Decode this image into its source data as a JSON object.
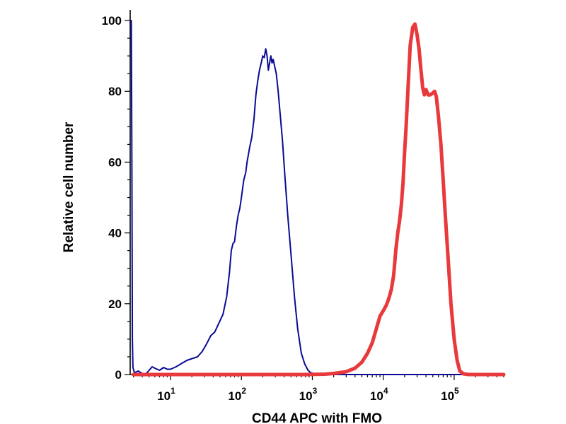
{
  "chart_data": {
    "type": "line",
    "title": "",
    "xlabel": "CD44 APC with FMO",
    "ylabel": "Relative cell number",
    "x_scale": "log",
    "xlim": [
      2.7,
      500000
    ],
    "ylim": [
      0,
      103
    ],
    "x_ticks": [
      {
        "value": 10,
        "base": "10",
        "exp": "1"
      },
      {
        "value": 100,
        "base": "10",
        "exp": "2"
      },
      {
        "value": 1000,
        "base": "10",
        "exp": "3"
      },
      {
        "value": 10000,
        "base": "10",
        "exp": "4"
      },
      {
        "value": 100000,
        "base": "10",
        "exp": "5"
      }
    ],
    "y_ticks": [
      {
        "value": 0,
        "label": "0"
      },
      {
        "value": 20,
        "label": "20"
      },
      {
        "value": 40,
        "label": "40"
      },
      {
        "value": 60,
        "label": "60"
      },
      {
        "value": 80,
        "label": "80"
      },
      {
        "value": 100,
        "label": "100"
      }
    ],
    "grid": false,
    "legend": "none",
    "series": [
      {
        "color": "#0a0a96",
        "line_width": "thin",
        "points": [
          [
            2.8,
            100
          ],
          [
            2.85,
            60
          ],
          [
            2.9,
            10
          ],
          [
            2.95,
            2
          ],
          [
            3.1,
            0.5
          ],
          [
            3.5,
            1
          ],
          [
            4,
            0.3
          ],
          [
            4.5,
            0.2
          ],
          [
            5,
            1.2
          ],
          [
            5.5,
            2.2
          ],
          [
            6,
            1.8
          ],
          [
            7,
            1.2
          ],
          [
            8,
            2
          ],
          [
            9,
            1.5
          ],
          [
            10,
            1.5
          ],
          [
            12,
            2.2
          ],
          [
            14,
            3
          ],
          [
            17,
            4
          ],
          [
            20,
            4.5
          ],
          [
            24,
            5
          ],
          [
            28,
            6.5
          ],
          [
            32,
            8.5
          ],
          [
            37,
            11
          ],
          [
            42,
            12
          ],
          [
            48,
            14.5
          ],
          [
            55,
            17
          ],
          [
            62,
            22
          ],
          [
            68,
            29
          ],
          [
            72,
            35
          ],
          [
            76,
            37
          ],
          [
            80,
            37.5
          ],
          [
            85,
            42
          ],
          [
            90,
            45
          ],
          [
            95,
            47
          ],
          [
            100,
            50
          ],
          [
            108,
            55
          ],
          [
            115,
            57
          ],
          [
            120,
            60
          ],
          [
            130,
            64
          ],
          [
            140,
            67
          ],
          [
            150,
            72
          ],
          [
            160,
            79
          ],
          [
            170,
            83
          ],
          [
            180,
            86
          ],
          [
            190,
            88
          ],
          [
            200,
            90
          ],
          [
            210,
            89.5
          ],
          [
            220,
            92
          ],
          [
            230,
            90
          ],
          [
            240,
            86
          ],
          [
            250,
            88
          ],
          [
            260,
            90
          ],
          [
            270,
            88
          ],
          [
            280,
            89
          ],
          [
            295,
            87
          ],
          [
            310,
            85
          ],
          [
            330,
            80
          ],
          [
            350,
            74
          ],
          [
            380,
            66
          ],
          [
            410,
            56
          ],
          [
            450,
            45
          ],
          [
            500,
            34
          ],
          [
            560,
            22
          ],
          [
            620,
            13
          ],
          [
            700,
            6
          ],
          [
            780,
            3
          ],
          [
            870,
            1.2
          ],
          [
            950,
            0.5
          ],
          [
            1100,
            0.2
          ],
          [
            1500,
            0
          ],
          [
            5000,
            0
          ],
          [
            100000,
            0
          ],
          [
            500000,
            0
          ]
        ]
      },
      {
        "color": "#e8393c",
        "line_width": "thick",
        "points": [
          [
            3,
            0
          ],
          [
            800,
            0
          ],
          [
            1500,
            0.1
          ],
          [
            2000,
            0.3
          ],
          [
            3000,
            0.8
          ],
          [
            4000,
            1.8
          ],
          [
            5000,
            3.5
          ],
          [
            6000,
            6
          ],
          [
            7000,
            9
          ],
          [
            8000,
            13
          ],
          [
            9000,
            16.5
          ],
          [
            10000,
            18
          ],
          [
            11000,
            19.5
          ],
          [
            12000,
            21.5
          ],
          [
            13000,
            24
          ],
          [
            14000,
            28
          ],
          [
            15000,
            35
          ],
          [
            16000,
            40
          ],
          [
            17000,
            43.5
          ],
          [
            18000,
            48
          ],
          [
            19000,
            54
          ],
          [
            20000,
            63
          ],
          [
            21000,
            70
          ],
          [
            22000,
            78
          ],
          [
            23000,
            86
          ],
          [
            24000,
            93
          ],
          [
            26000,
            98
          ],
          [
            28000,
            99
          ],
          [
            30000,
            96
          ],
          [
            32000,
            92
          ],
          [
            34000,
            86
          ],
          [
            36000,
            81
          ],
          [
            38000,
            79
          ],
          [
            40000,
            80.5
          ],
          [
            43000,
            79
          ],
          [
            46000,
            79
          ],
          [
            50000,
            79.5
          ],
          [
            53000,
            80
          ],
          [
            56000,
            78.5
          ],
          [
            60000,
            73
          ],
          [
            65000,
            65
          ],
          [
            70000,
            55
          ],
          [
            75000,
            45
          ],
          [
            82000,
            33
          ],
          [
            90000,
            20
          ],
          [
            100000,
            10
          ],
          [
            110000,
            4
          ],
          [
            120000,
            1
          ],
          [
            135000,
            0.2
          ],
          [
            160000,
            0
          ],
          [
            500000,
            0
          ]
        ]
      }
    ]
  }
}
